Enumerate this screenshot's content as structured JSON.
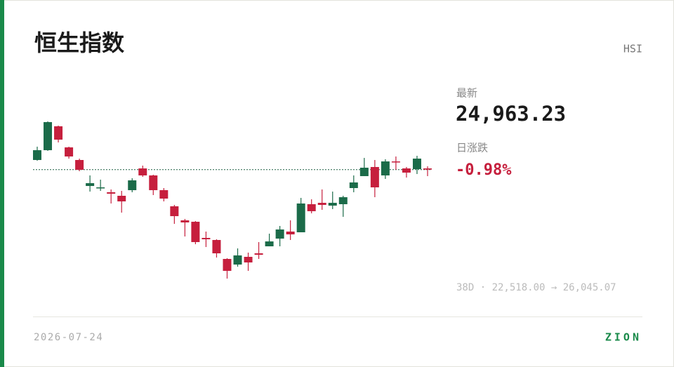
{
  "chart_data": {
    "type": "candlestick",
    "title": "恒生指数",
    "symbol": "HSI",
    "last_caption": "最新",
    "last_label": "24,963.23",
    "change_caption": "日涨跌",
    "change_label": "-0.98%",
    "range_label": "38D · 22,518.00 → 26,045.07",
    "date": "2026-07-24",
    "brand": "ZION",
    "up_color": "#1b6b49",
    "down_color": "#c61f3d",
    "ylim": [
      22518,
      26045.07
    ],
    "candles": [
      {
        "open": 25179,
        "high": 25478,
        "low": 25163,
        "close": 25399
      },
      {
        "open": 25399,
        "high": 26045,
        "low": 25384,
        "close": 26029
      },
      {
        "open": 25935,
        "high": 25951,
        "low": 25573,
        "close": 25636
      },
      {
        "open": 25462,
        "high": 25478,
        "low": 25210,
        "close": 25258
      },
      {
        "open": 25179,
        "high": 25210,
        "low": 24927,
        "close": 24959
      },
      {
        "open": 24596,
        "high": 24833,
        "low": 24470,
        "close": 24659
      },
      {
        "open": 24549,
        "high": 24738,
        "low": 24486,
        "close": 24565
      },
      {
        "open": 24455,
        "high": 24518,
        "low": 24203,
        "close": 24423
      },
      {
        "open": 24376,
        "high": 24486,
        "low": 23998,
        "close": 24250
      },
      {
        "open": 24502,
        "high": 24770,
        "low": 24455,
        "close": 24722
      },
      {
        "open": 24990,
        "high": 25053,
        "low": 24801,
        "close": 24833
      },
      {
        "open": 24833,
        "high": 24848,
        "low": 24392,
        "close": 24502
      },
      {
        "open": 24502,
        "high": 24549,
        "low": 24250,
        "close": 24313
      },
      {
        "open": 24140,
        "high": 24171,
        "low": 23746,
        "close": 23919
      },
      {
        "open": 23825,
        "high": 23856,
        "low": 23463,
        "close": 23778
      },
      {
        "open": 23793,
        "high": 23809,
        "low": 23289,
        "close": 23337
      },
      {
        "open": 23431,
        "high": 23573,
        "low": 23226,
        "close": 23400
      },
      {
        "open": 23384,
        "high": 23400,
        "low": 22990,
        "close": 23085
      },
      {
        "open": 22959,
        "high": 22975,
        "low": 22518,
        "close": 22691
      },
      {
        "open": 22833,
        "high": 23195,
        "low": 22786,
        "close": 23038
      },
      {
        "open": 23006,
        "high": 23101,
        "low": 22691,
        "close": 22880
      },
      {
        "open": 23085,
        "high": 23337,
        "low": 22959,
        "close": 23053
      },
      {
        "open": 23242,
        "high": 23526,
        "low": 23242,
        "close": 23352
      },
      {
        "open": 23415,
        "high": 23699,
        "low": 23242,
        "close": 23620
      },
      {
        "open": 23573,
        "high": 23825,
        "low": 23384,
        "close": 23510
      },
      {
        "open": 23557,
        "high": 24329,
        "low": 23557,
        "close": 24203
      },
      {
        "open": 24187,
        "high": 24297,
        "low": 23982,
        "close": 24030
      },
      {
        "open": 24218,
        "high": 24518,
        "low": 24061,
        "close": 24171
      },
      {
        "open": 24155,
        "high": 24470,
        "low": 24077,
        "close": 24218
      },
      {
        "open": 24187,
        "high": 24376,
        "low": 23904,
        "close": 24344
      },
      {
        "open": 24549,
        "high": 24833,
        "low": 24455,
        "close": 24675
      },
      {
        "open": 24817,
        "high": 25226,
        "low": 24817,
        "close": 25006
      },
      {
        "open": 25022,
        "high": 25179,
        "low": 24344,
        "close": 24565
      },
      {
        "open": 24833,
        "high": 25195,
        "low": 24754,
        "close": 25147
      },
      {
        "open": 25147,
        "high": 25258,
        "low": 24959,
        "close": 25132
      },
      {
        "open": 24990,
        "high": 25022,
        "low": 24785,
        "close": 24896
      },
      {
        "open": 24974,
        "high": 25273,
        "low": 24864,
        "close": 25210
      },
      {
        "open": 24990,
        "high": 25037,
        "low": 24817,
        "close": 24963.23
      }
    ]
  }
}
